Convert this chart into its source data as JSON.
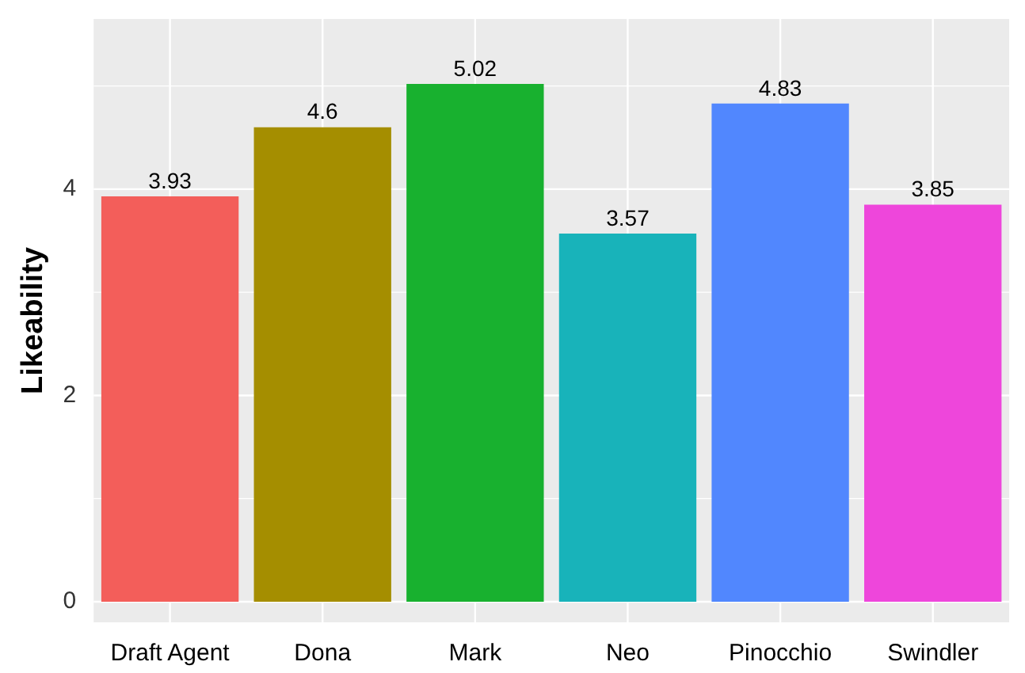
{
  "chart_data": {
    "type": "bar",
    "ylabel": "Likeability",
    "categories": [
      "Draft Agent",
      "Dona",
      "Mark",
      "Neo",
      "Pinocchio",
      "Swindler"
    ],
    "values": [
      3.93,
      4.6,
      5.02,
      3.57,
      4.83,
      3.85
    ],
    "colors": [
      "#f35e5a",
      "#a58e00",
      "#18b12f",
      "#18b3ba",
      "#5187fe",
      "#ee46db"
    ],
    "ylim": [
      -0.2,
      5.65
    ],
    "yticks": [
      0,
      2,
      4
    ],
    "grid": true,
    "data_labels": true,
    "legend": false
  }
}
